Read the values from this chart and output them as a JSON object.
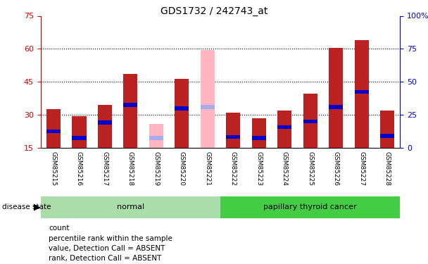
{
  "title": "GDS1732 / 242743_at",
  "samples": [
    "GSM85215",
    "GSM85216",
    "GSM85217",
    "GSM85218",
    "GSM85219",
    "GSM85220",
    "GSM85221",
    "GSM85222",
    "GSM85223",
    "GSM85224",
    "GSM85225",
    "GSM85226",
    "GSM85227",
    "GSM85228"
  ],
  "count_values": [
    32.5,
    29.5,
    34.5,
    48.5,
    0,
    46.5,
    0,
    31.0,
    28.5,
    32.0,
    39.5,
    60.5,
    64.0,
    32.0
  ],
  "percentile_values": [
    22.5,
    19.5,
    26.5,
    34.5,
    0,
    33.0,
    0,
    20.0,
    19.5,
    24.5,
    27.0,
    33.5,
    40.5,
    20.5
  ],
  "absent_count_values": [
    0,
    0,
    0,
    0,
    26.0,
    0,
    59.5,
    0,
    0,
    0,
    0,
    0,
    0,
    0
  ],
  "absent_rank_values": [
    0,
    0,
    0,
    0,
    19.5,
    0,
    33.5,
    0,
    0,
    0,
    0,
    0,
    0,
    0
  ],
  "is_absent": [
    false,
    false,
    false,
    false,
    true,
    false,
    true,
    false,
    false,
    false,
    false,
    false,
    false,
    false
  ],
  "normal_group_indices": [
    0,
    1,
    2,
    3,
    4,
    5,
    6
  ],
  "cancer_group_indices": [
    7,
    8,
    9,
    10,
    11,
    12,
    13
  ],
  "ylim_left": [
    15,
    75
  ],
  "ylim_right": [
    0,
    100
  ],
  "yticks_left": [
    15,
    30,
    45,
    60,
    75
  ],
  "yticks_right": [
    0,
    25,
    50,
    75,
    100
  ],
  "ytick_right_labels": [
    "0",
    "25",
    "50",
    "75",
    "100%"
  ],
  "grid_lines": [
    30,
    45,
    60
  ],
  "bar_width": 0.55,
  "bar_color_count": "#bb2222",
  "bar_color_percentile": "#0000cc",
  "bar_color_absent_count": "#ffb6c1",
  "bar_color_absent_rank": "#aaaaee",
  "normal_bg": "#aaddaa",
  "cancer_bg": "#44cc44",
  "group_row_bg": "#cccccc",
  "plot_bg": "#ffffff",
  "left_axis_color": "#cc0000",
  "right_axis_color": "#0000cc",
  "legend_labels": [
    "count",
    "percentile rank within the sample",
    "value, Detection Call = ABSENT",
    "rank, Detection Call = ABSENT"
  ],
  "legend_colors": [
    "#bb2222",
    "#0000cc",
    "#ffb6c1",
    "#aaaaee"
  ]
}
